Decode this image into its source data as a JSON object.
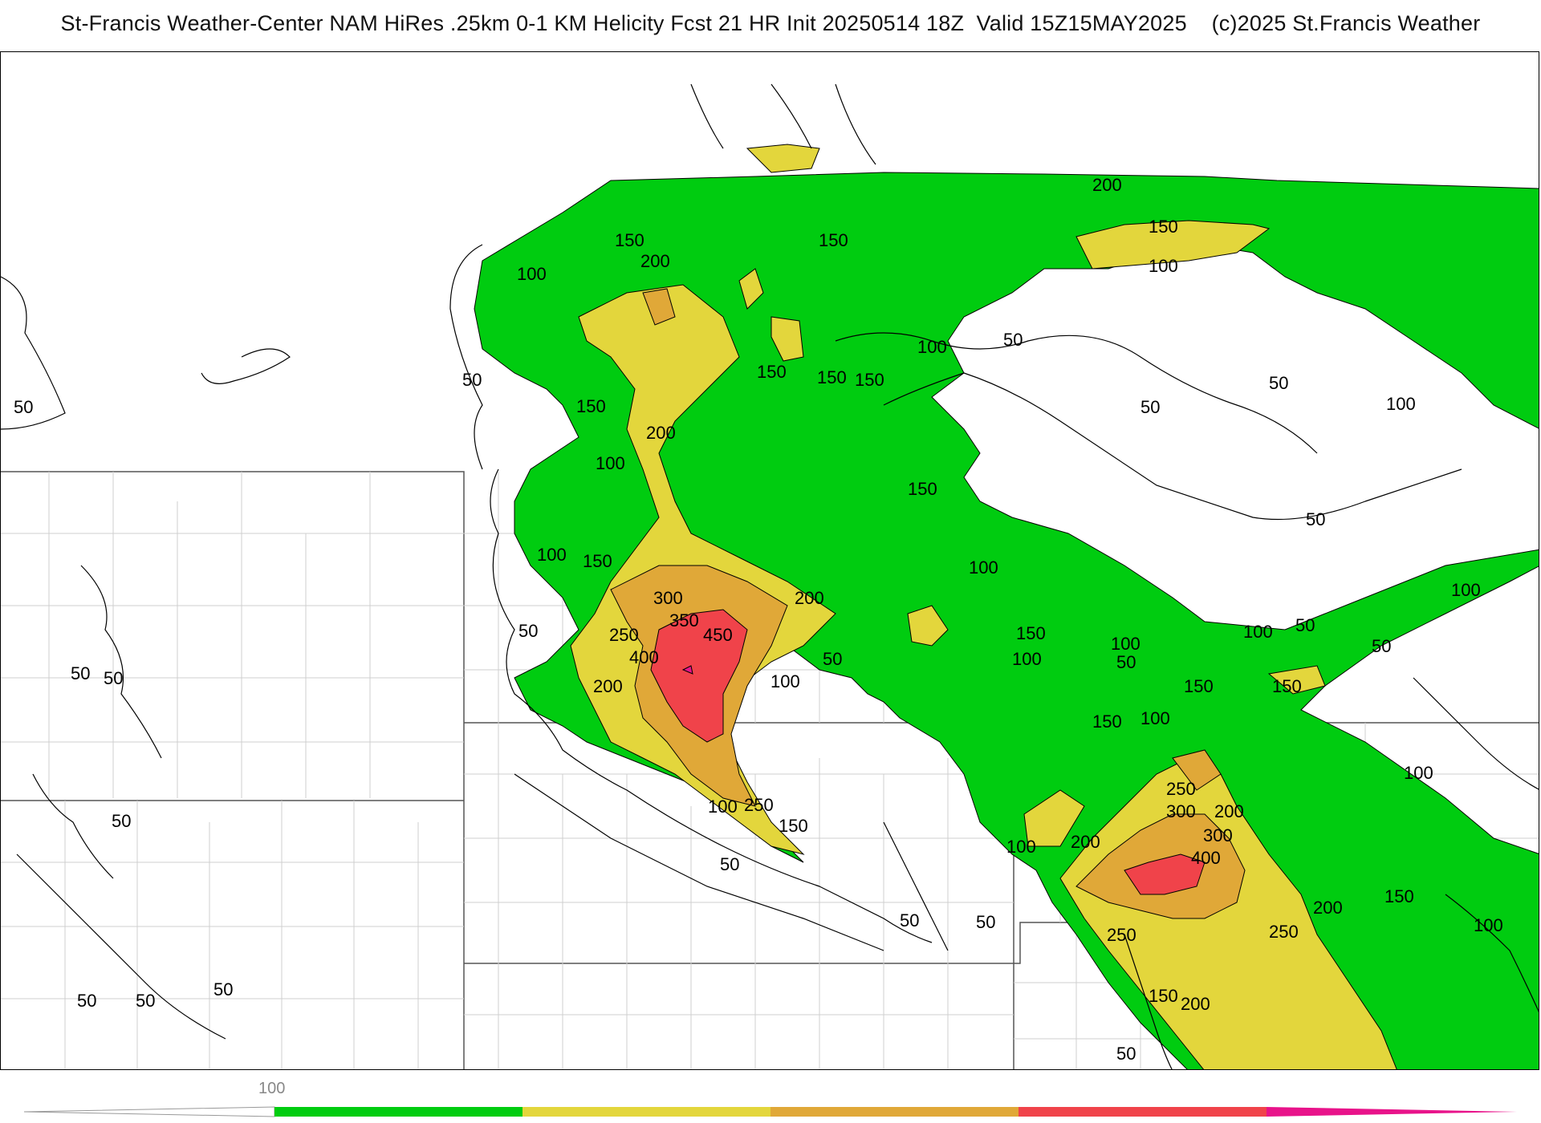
{
  "title": "St-Francis Weather-Center NAM HiRes .25km 0-1 KM Helicity Fcst 21 HR Init 20250514 18Z  Valid 15Z15MAY2025    (c)2025 St.Francis Weather",
  "colors": {
    "green": "#00cc10",
    "yellow": "#e3d63c",
    "orange": "#e0a838",
    "red": "#f0434a",
    "magenta": "#e8138a",
    "contour": "#000000",
    "county": "#c8c8c8"
  },
  "contour_labels": [
    "50",
    "100",
    "150",
    "200",
    "250",
    "300",
    "350",
    "400",
    "450"
  ],
  "legend": {
    "tick_label": "100",
    "bands": [
      "green",
      "yellow",
      "orange",
      "red",
      "magenta"
    ]
  }
}
